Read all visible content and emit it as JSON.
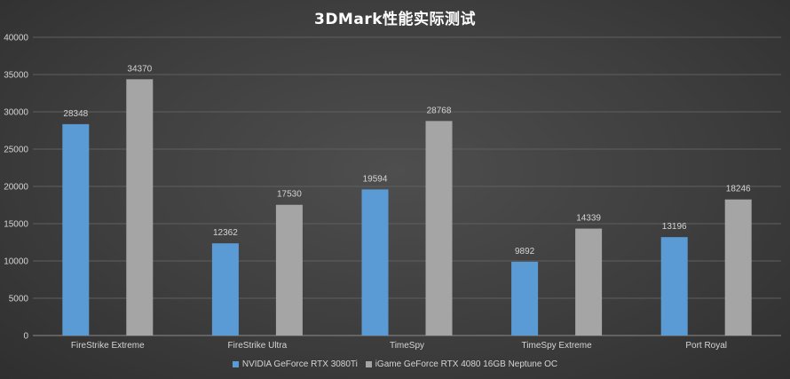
{
  "chart_data": {
    "type": "bar",
    "title": "3DMark性能实际测试",
    "categories": [
      "FireStrike Extreme",
      "FireStrike Ultra",
      "TimeSpy",
      "TimeSpy Extreme",
      "Port Royal"
    ],
    "series": [
      {
        "name": "NVIDIA GeForce RTX 3080Ti",
        "values": [
          28348,
          12362,
          19594,
          9892,
          13196
        ],
        "color": "#5b9bd5"
      },
      {
        "name": "iGame GeForce RTX 4080 16GB Neptune OC",
        "values": [
          34370,
          17530,
          28768,
          14339,
          18246
        ],
        "color": "#a5a5a5"
      }
    ],
    "ylim": [
      0,
      40000
    ],
    "yticks": [
      0,
      5000,
      10000,
      15000,
      20000,
      25000,
      30000,
      35000,
      40000
    ],
    "grid": true,
    "legend_position": "bottom",
    "data_labels": true
  }
}
